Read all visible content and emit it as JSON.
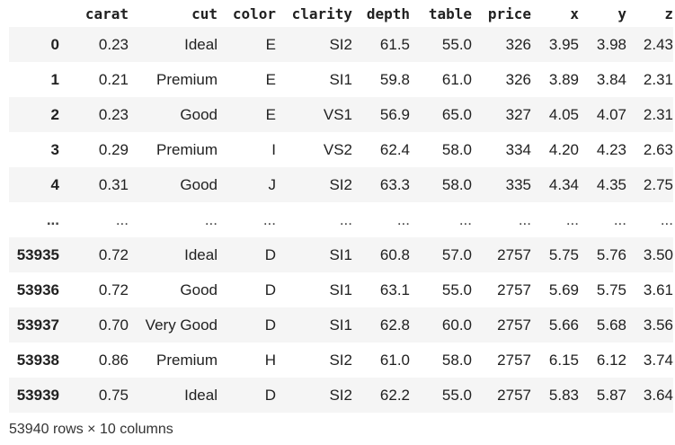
{
  "table": {
    "columns": [
      "",
      "carat",
      "cut",
      "color",
      "clarity",
      "depth",
      "table",
      "price",
      "x",
      "y",
      "z"
    ],
    "rows": [
      [
        "0",
        "0.23",
        "Ideal",
        "E",
        "SI2",
        "61.5",
        "55.0",
        "326",
        "3.95",
        "3.98",
        "2.43"
      ],
      [
        "1",
        "0.21",
        "Premium",
        "E",
        "SI1",
        "59.8",
        "61.0",
        "326",
        "3.89",
        "3.84",
        "2.31"
      ],
      [
        "2",
        "0.23",
        "Good",
        "E",
        "VS1",
        "56.9",
        "65.0",
        "327",
        "4.05",
        "4.07",
        "2.31"
      ],
      [
        "3",
        "0.29",
        "Premium",
        "I",
        "VS2",
        "62.4",
        "58.0",
        "334",
        "4.20",
        "4.23",
        "2.63"
      ],
      [
        "4",
        "0.31",
        "Good",
        "J",
        "SI2",
        "63.3",
        "58.0",
        "335",
        "4.34",
        "4.35",
        "2.75"
      ],
      [
        "...",
        "...",
        "...",
        "...",
        "...",
        "...",
        "...",
        "...",
        "...",
        "...",
        "..."
      ],
      [
        "53935",
        "0.72",
        "Ideal",
        "D",
        "SI1",
        "60.8",
        "57.0",
        "2757",
        "5.75",
        "5.76",
        "3.50"
      ],
      [
        "53936",
        "0.72",
        "Good",
        "D",
        "SI1",
        "63.1",
        "55.0",
        "2757",
        "5.69",
        "5.75",
        "3.61"
      ],
      [
        "53937",
        "0.70",
        "Very Good",
        "D",
        "SI1",
        "62.8",
        "60.0",
        "2757",
        "5.66",
        "5.68",
        "3.56"
      ],
      [
        "53938",
        "0.86",
        "Premium",
        "H",
        "SI2",
        "61.0",
        "58.0",
        "2757",
        "6.15",
        "6.12",
        "3.74"
      ],
      [
        "53939",
        "0.75",
        "Ideal",
        "D",
        "SI2",
        "62.2",
        "55.0",
        "2757",
        "5.83",
        "5.87",
        "3.64"
      ]
    ]
  },
  "footer": {
    "summary": "53940 rows × 10 columns"
  }
}
